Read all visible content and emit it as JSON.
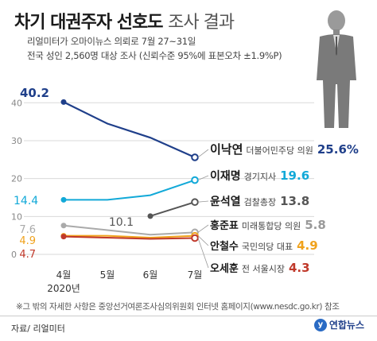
{
  "header": {
    "title_bold": "차기 대권주자 선호도",
    "title_light": "조사 결과",
    "line1": "리얼미터가 오마이뉴스 의뢰로 7월 27~31일",
    "line2": "전국 성인 2,560명 대상 조사 (신뢰수준 95%에 표본오차 ±1.9%P)"
  },
  "footer": {
    "note": "※그 밖의 자세한 사항은 중앙선거여론조사심의위원회 인터넷 홈페이지(www.nesdc.go.kr) 참조",
    "source": "자료/ 리얼미터",
    "logo": "연합뉴스"
  },
  "chart_data": {
    "type": "line",
    "categories": [
      "4월",
      "5월",
      "6월",
      "7월"
    ],
    "year_label": "2020년",
    "yticks": [
      "40",
      "30",
      "20",
      "10",
      "0"
    ],
    "ylim": [
      0,
      43
    ],
    "series": [
      {
        "name": "이낙연",
        "desc": "더불어민주당 의원",
        "values": [
          40.2,
          34.5,
          30.8,
          25.6
        ],
        "start_label": "40.2",
        "end_label": "25.6%",
        "color": "#1f3f8a"
      },
      {
        "name": "이재명",
        "desc": "경기지사",
        "values": [
          14.4,
          14.4,
          15.6,
          19.6
        ],
        "start_label": "14.4",
        "end_label": "19.6",
        "color": "#12a9d8"
      },
      {
        "name": "윤석열",
        "desc": "검찰총장",
        "values": [
          null,
          null,
          10.1,
          13.8
        ],
        "start_label": "10.1",
        "end_label": "13.8",
        "color": "#555555"
      },
      {
        "name": "홍준표",
        "desc": "미래통합당 의원",
        "values": [
          7.6,
          6.4,
          5.2,
          5.8
        ],
        "start_label": "7.6",
        "end_label": "5.8",
        "color": "#aaaaaa"
      },
      {
        "name": "안철수",
        "desc": "국민의당 대표",
        "values": [
          4.9,
          4.9,
          4.4,
          4.9
        ],
        "start_label": "4.9",
        "end_label": "4.9",
        "color": "#f0a21c"
      },
      {
        "name": "오세훈",
        "desc": "전 서울시장",
        "values": [
          4.7,
          4.4,
          4.1,
          4.3
        ],
        "start_label": "4.7",
        "end_label": "4.3",
        "color": "#c0392b"
      }
    ]
  }
}
